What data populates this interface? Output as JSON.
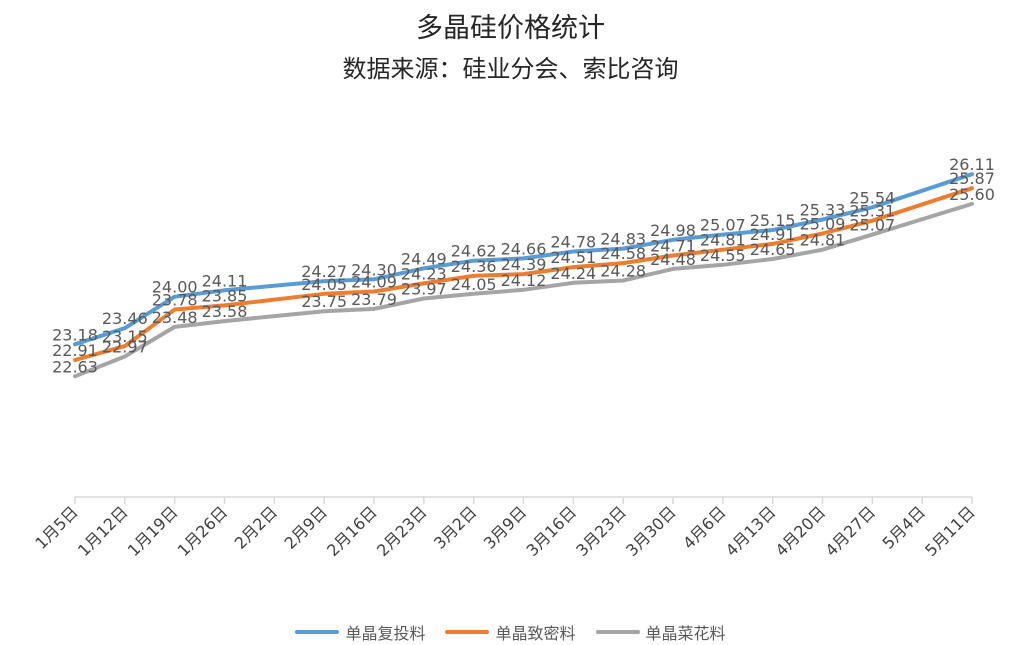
{
  "chart_data": {
    "type": "line",
    "title": "多晶硅价格统计",
    "subtitle": "数据来源：硅业分会、索比咨询",
    "categories": [
      "1月5日",
      "1月12日",
      "1月19日",
      "1月26日",
      "2月2日",
      "2月9日",
      "2月16日",
      "2月23日",
      "3月2日",
      "3月9日",
      "3月16日",
      "3月23日",
      "3月30日",
      "4月6日",
      "4月13日",
      "4月20日",
      "4月27日",
      "5月4日",
      "5月11日"
    ],
    "series": [
      {
        "name": "单晶复投料",
        "color": "#5b9bd5",
        "values": [
          23.18,
          23.46,
          24.0,
          24.11,
          null,
          24.27,
          24.3,
          24.49,
          24.62,
          24.66,
          24.78,
          24.83,
          24.98,
          25.07,
          25.15,
          25.33,
          25.54,
          null,
          26.11
        ]
      },
      {
        "name": "单晶致密料",
        "color": "#ed7d31",
        "values": [
          22.91,
          23.15,
          23.78,
          23.85,
          null,
          24.05,
          24.09,
          24.23,
          24.36,
          24.39,
          24.51,
          24.58,
          24.71,
          24.81,
          24.91,
          25.09,
          25.31,
          null,
          25.87
        ]
      },
      {
        "name": "单晶菜花料",
        "color": "#a5a5a5",
        "values": [
          22.63,
          22.97,
          23.48,
          23.58,
          null,
          23.75,
          23.79,
          23.97,
          24.05,
          24.12,
          24.24,
          24.28,
          24.48,
          24.55,
          24.65,
          24.81,
          25.07,
          null,
          25.6
        ]
      }
    ],
    "ylim": [
      20.55,
      26.7
    ],
    "grid": false,
    "legend_position": "bottom"
  }
}
